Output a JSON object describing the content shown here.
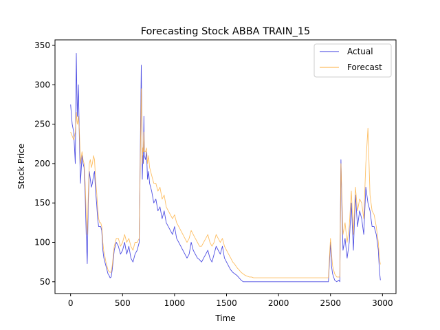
{
  "chart_data": {
    "type": "line",
    "title": "Forecasting Stock ABBA TRAIN_15",
    "xlabel": "Time",
    "ylabel": "Stock Price",
    "xlim": [
      -150,
      3130
    ],
    "ylim": [
      35,
      357
    ],
    "xticks": [
      0,
      500,
      1000,
      1500,
      2000,
      2500,
      3000
    ],
    "yticks": [
      50,
      100,
      150,
      200,
      250,
      300,
      350
    ],
    "grid": false,
    "legend_position": "top-right",
    "series": [
      {
        "name": "Actual",
        "color": "#3b3bdf",
        "x": [
          0,
          15,
          30,
          45,
          55,
          60,
          65,
          75,
          85,
          95,
          110,
          120,
          130,
          140,
          150,
          160,
          170,
          180,
          190,
          200,
          210,
          220,
          230,
          240,
          250,
          260,
          270,
          280,
          290,
          300,
          310,
          320,
          330,
          340,
          350,
          360,
          370,
          380,
          390,
          400,
          420,
          440,
          460,
          480,
          500,
          520,
          540,
          560,
          580,
          600,
          620,
          640,
          660,
          680,
          690,
          695,
          700,
          705,
          710,
          720,
          730,
          740,
          750,
          760,
          780,
          800,
          820,
          840,
          860,
          880,
          900,
          920,
          940,
          960,
          980,
          1000,
          1020,
          1040,
          1060,
          1080,
          1100,
          1120,
          1140,
          1160,
          1180,
          1200,
          1220,
          1240,
          1260,
          1280,
          1300,
          1320,
          1340,
          1360,
          1380,
          1400,
          1420,
          1440,
          1460,
          1480,
          1500,
          1520,
          1540,
          1560,
          1580,
          1600,
          1620,
          1640,
          1660,
          1680,
          1700,
          1720,
          1740,
          1760,
          1780,
          1800,
          1820,
          1840,
          1860,
          1880,
          1900,
          1950,
          2000,
          2100,
          2200,
          2300,
          2400,
          2480,
          2500,
          2510,
          2520,
          2540,
          2560,
          2580,
          2590,
          2600,
          2610,
          2620,
          2640,
          2660,
          2680,
          2700,
          2720,
          2740,
          2760,
          2780,
          2800,
          2820,
          2840,
          2860,
          2880,
          2900,
          2920,
          2940,
          2960,
          2970,
          2980
        ],
        "y": [
          275,
          250,
          240,
          200,
          340,
          290,
          260,
          300,
          230,
          175,
          210,
          200,
          195,
          160,
          110,
          73,
          150,
          190,
          180,
          170,
          175,
          185,
          190,
          165,
          150,
          130,
          120,
          120,
          120,
          115,
          90,
          80,
          75,
          70,
          65,
          60,
          58,
          55,
          56,
          65,
          90,
          100,
          95,
          85,
          90,
          100,
          85,
          95,
          80,
          75,
          85,
          90,
          100,
          325,
          180,
          210,
          200,
          260,
          210,
          205,
          215,
          180,
          190,
          175,
          165,
          150,
          155,
          140,
          145,
          130,
          140,
          125,
          120,
          115,
          110,
          120,
          105,
          100,
          95,
          90,
          85,
          80,
          85,
          100,
          90,
          85,
          80,
          78,
          75,
          80,
          85,
          90,
          80,
          75,
          85,
          95,
          90,
          85,
          95,
          80,
          75,
          70,
          65,
          62,
          60,
          58,
          55,
          52,
          50,
          50,
          50,
          50,
          50,
          50,
          50,
          50,
          50,
          50,
          50,
          50,
          50,
          50,
          50,
          50,
          50,
          50,
          50,
          50,
          100,
          70,
          60,
          52,
          50,
          52,
          50,
          205,
          140,
          90,
          105,
          80,
          100,
          150,
          90,
          160,
          120,
          140,
          130,
          110,
          170,
          150,
          140,
          120,
          120,
          110,
          90,
          65,
          52
        ]
      },
      {
        "name": "Forecast",
        "color": "#fdae3b",
        "x": [
          0,
          15,
          30,
          45,
          55,
          60,
          65,
          75,
          85,
          95,
          110,
          120,
          130,
          140,
          150,
          160,
          170,
          180,
          190,
          200,
          210,
          220,
          230,
          240,
          250,
          260,
          270,
          280,
          290,
          300,
          310,
          320,
          330,
          340,
          350,
          360,
          370,
          380,
          390,
          400,
          420,
          440,
          460,
          480,
          500,
          520,
          540,
          560,
          580,
          600,
          620,
          640,
          660,
          680,
          690,
          695,
          700,
          705,
          710,
          720,
          730,
          740,
          750,
          760,
          780,
          800,
          820,
          840,
          860,
          880,
          900,
          920,
          940,
          960,
          980,
          1000,
          1020,
          1040,
          1060,
          1080,
          1100,
          1120,
          1140,
          1160,
          1180,
          1200,
          1220,
          1240,
          1260,
          1280,
          1300,
          1320,
          1340,
          1360,
          1380,
          1400,
          1420,
          1440,
          1460,
          1480,
          1500,
          1520,
          1540,
          1560,
          1580,
          1600,
          1620,
          1640,
          1660,
          1680,
          1700,
          1720,
          1740,
          1760,
          1780,
          1800,
          1820,
          1840,
          1860,
          1880,
          1900,
          1950,
          2000,
          2100,
          2200,
          2300,
          2400,
          2480,
          2500,
          2510,
          2520,
          2540,
          2560,
          2580,
          2590,
          2600,
          2610,
          2620,
          2640,
          2660,
          2680,
          2700,
          2720,
          2740,
          2760,
          2780,
          2800,
          2820,
          2840,
          2860,
          2880,
          2900,
          2920,
          2940,
          2960,
          2970,
          2980
        ],
        "y": [
          240,
          235,
          230,
          240,
          265,
          255,
          250,
          260,
          240,
          200,
          215,
          205,
          200,
          175,
          135,
          110,
          160,
          200,
          205,
          195,
          200,
          210,
          205,
          180,
          165,
          145,
          130,
          125,
          125,
          120,
          100,
          88,
          82,
          75,
          70,
          65,
          63,
          62,
          62,
          70,
          95,
          105,
          105,
          95,
          100,
          110,
          100,
          105,
          95,
          90,
          100,
          100,
          105,
          295,
          200,
          220,
          215,
          240,
          215,
          215,
          220,
          200,
          210,
          195,
          185,
          175,
          175,
          165,
          170,
          155,
          160,
          145,
          140,
          135,
          130,
          135,
          125,
          120,
          115,
          110,
          105,
          100,
          105,
          115,
          110,
          105,
          100,
          95,
          95,
          100,
          105,
          110,
          100,
          95,
          100,
          110,
          105,
          100,
          105,
          95,
          90,
          85,
          80,
          75,
          72,
          68,
          65,
          62,
          60,
          58,
          57,
          56,
          56,
          55,
          55,
          55,
          55,
          55,
          55,
          55,
          55,
          55,
          55,
          55,
          55,
          55,
          55,
          55,
          105,
          85,
          70,
          60,
          56,
          56,
          56,
          200,
          155,
          110,
          125,
          100,
          120,
          165,
          110,
          170,
          140,
          155,
          150,
          130,
          200,
          245,
          160,
          140,
          135,
          120,
          100,
          80,
          72
        ]
      }
    ]
  }
}
